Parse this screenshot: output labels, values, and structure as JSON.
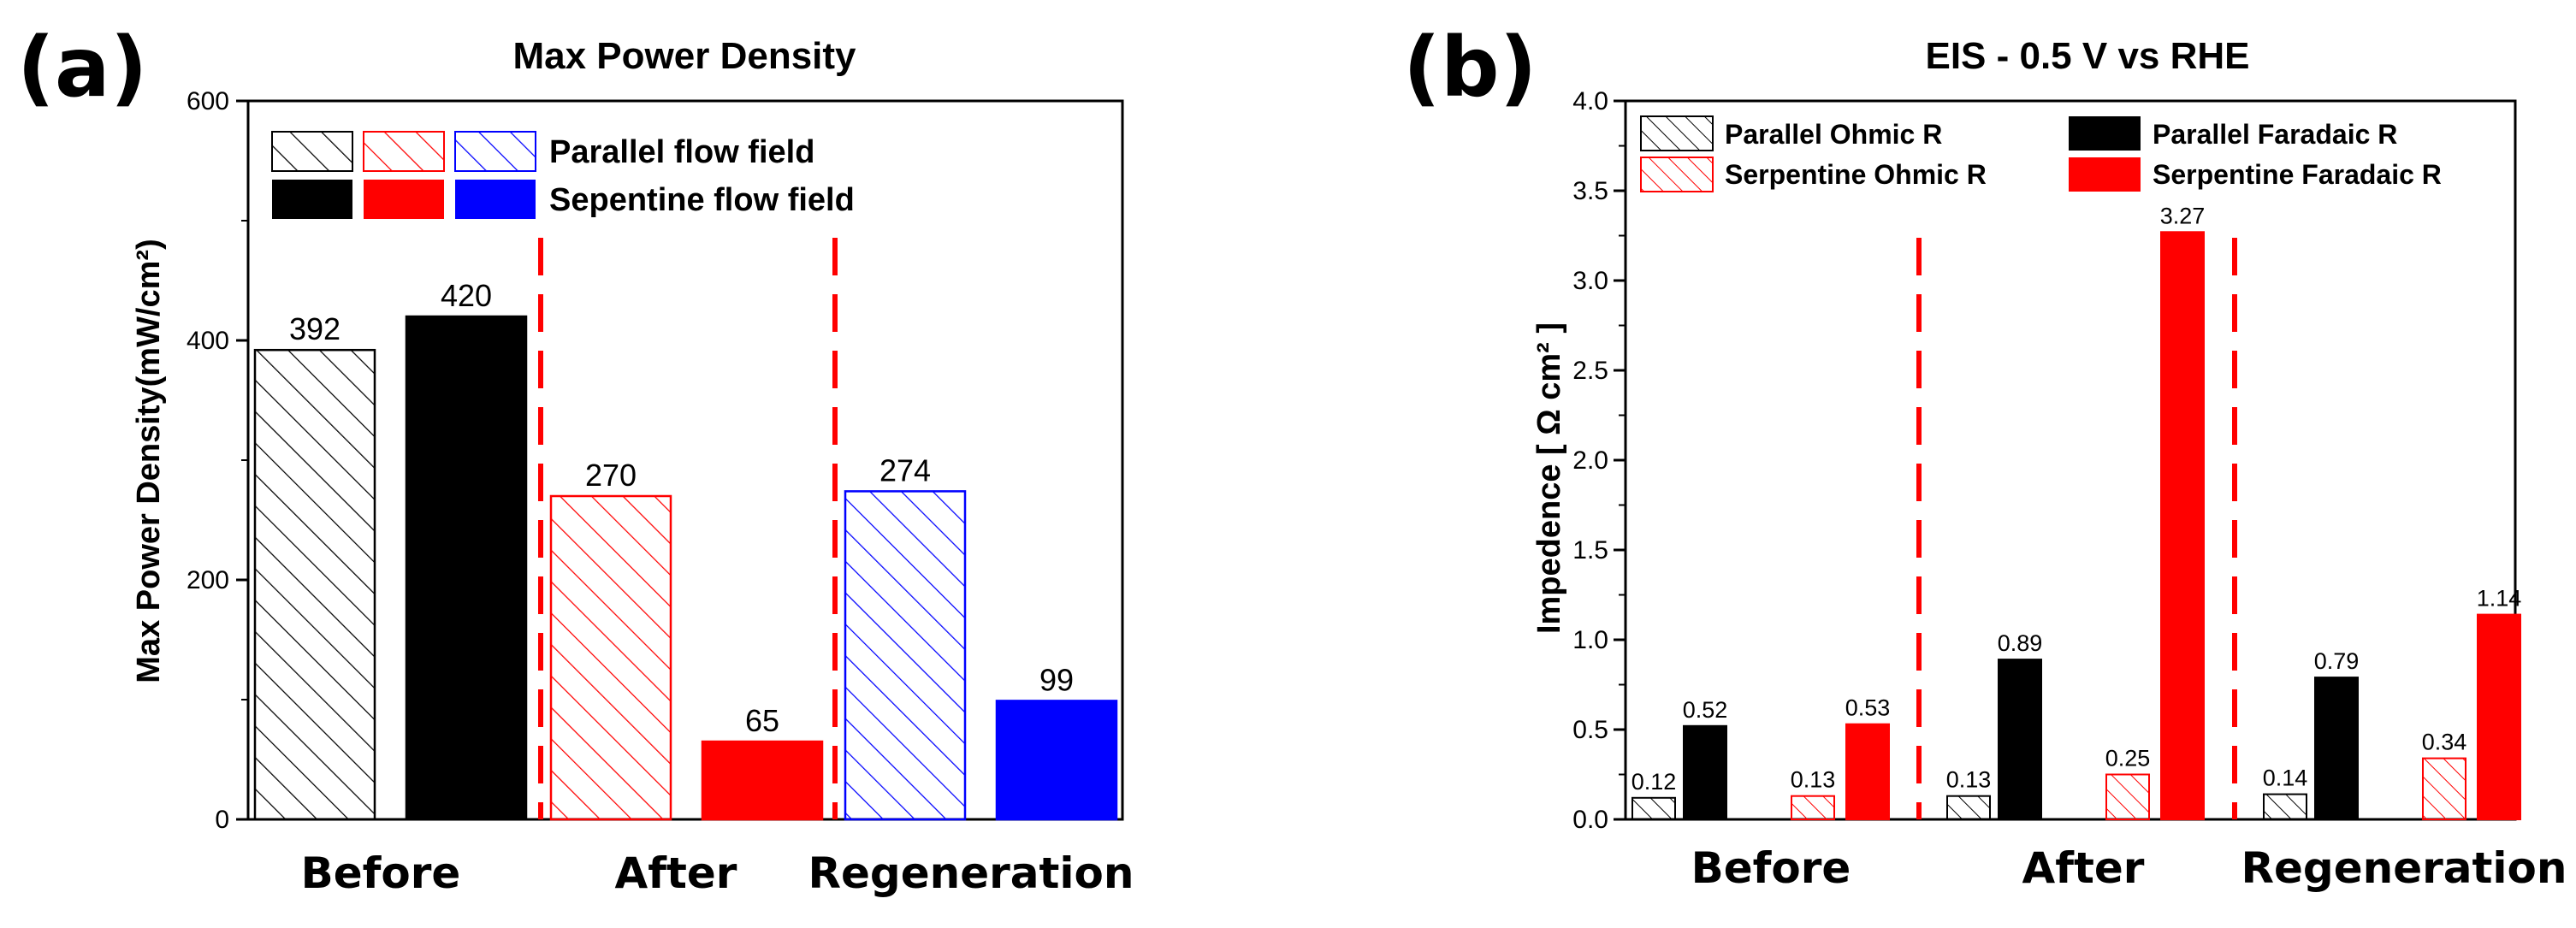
{
  "chart_data": [
    {
      "panel": "(a)",
      "type": "bar",
      "title": "Max Power Density",
      "xlabel": "",
      "ylabel": "Max Power Density(mW/cm²)",
      "ylim": [
        0,
        600
      ],
      "yticks": [
        0,
        200,
        400,
        600
      ],
      "categories": [
        "Before",
        "After",
        "Regeneration"
      ],
      "legend": {
        "placement": "top-left",
        "rows": [
          {
            "label": "Parallel flow field",
            "fill": "hatched"
          },
          {
            "label": "Sepentine flow field",
            "fill": "solid"
          }
        ],
        "swatch_colors": [
          "#000000",
          "#ff0000",
          "#0000ff"
        ]
      },
      "series": [
        {
          "name": "Parallel flow field",
          "values": [
            392,
            270,
            274
          ],
          "colors": [
            "#000000",
            "#ff0000",
            "#0000ff"
          ],
          "fill": "hatched"
        },
        {
          "name": "Sepentine flow field",
          "values": [
            420,
            65,
            99
          ],
          "colors": [
            "#000000",
            "#ff0000",
            "#0000ff"
          ],
          "fill": "solid"
        }
      ],
      "separator_color": "#ff0000"
    },
    {
      "panel": "(b)",
      "type": "bar",
      "title": "EIS - 0.5 V vs RHE",
      "xlabel": "",
      "ylabel": "Impedence [ Ω cm² ]",
      "ylim": [
        0,
        4.0
      ],
      "yticks": [
        "0.0",
        "0.5",
        "1.0",
        "1.5",
        "2.0",
        "2.5",
        "3.0",
        "3.5",
        "4.0"
      ],
      "categories": [
        "Before",
        "After",
        "Regeneration"
      ],
      "legend": {
        "placement": "top",
        "entries": [
          {
            "label": "Parallel Ohmic R",
            "color": "#000000",
            "fill": "hatched"
          },
          {
            "label": "Parallel Faradaic R",
            "color": "#000000",
            "fill": "solid"
          },
          {
            "label": "Serpentine Ohmic R",
            "color": "#ff0000",
            "fill": "hatched"
          },
          {
            "label": "Serpentine Faradaic R",
            "color": "#ff0000",
            "fill": "solid"
          }
        ]
      },
      "series": [
        {
          "name": "Parallel Ohmic R",
          "values": [
            0.12,
            0.13,
            0.14
          ],
          "labels": [
            "0.12",
            "0.13",
            "0.14"
          ],
          "color": "#000000",
          "fill": "hatched"
        },
        {
          "name": "Parallel Faradaic R",
          "values": [
            0.52,
            0.89,
            0.79
          ],
          "labels": [
            "0.52",
            "0.89",
            "0.79"
          ],
          "color": "#000000",
          "fill": "solid"
        },
        {
          "name": "Serpentine Ohmic R",
          "values": [
            0.13,
            0.25,
            0.34
          ],
          "labels": [
            "0.13",
            "0.25",
            "0.34"
          ],
          "color": "#ff0000",
          "fill": "hatched"
        },
        {
          "name": "Serpentine Faradaic R",
          "values": [
            0.53,
            3.27,
            1.14
          ],
          "labels": [
            "0.53",
            "3.27",
            "1.14"
          ],
          "color": "#ff0000",
          "fill": "solid"
        }
      ],
      "separator_color": "#ff0000"
    }
  ]
}
